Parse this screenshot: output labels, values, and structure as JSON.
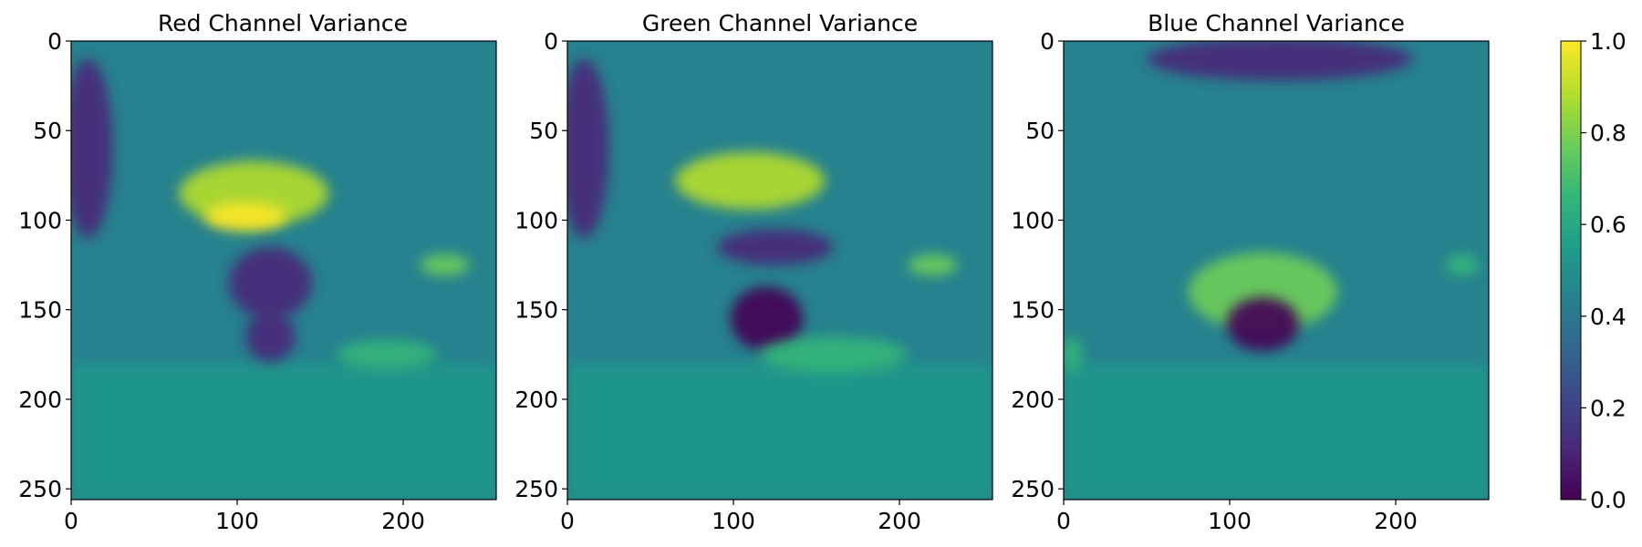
{
  "chart_data": [
    {
      "type": "heatmap",
      "title": "Red Channel Variance",
      "image_size": [
        256,
        256
      ],
      "xlim": [
        0,
        256
      ],
      "ylim": [
        256,
        0
      ],
      "xticks": [
        0,
        100,
        200
      ],
      "yticks": [
        0,
        50,
        100,
        150,
        200,
        250
      ],
      "colormap": "viridis",
      "features": [
        {
          "desc": "bright band",
          "cx": 110,
          "cy": 85,
          "rx": 45,
          "ry": 18,
          "value": 0.85
        },
        {
          "desc": "hot spot",
          "cx": 105,
          "cy": 98,
          "rx": 25,
          "ry": 8,
          "value": 1.0
        },
        {
          "desc": "dark region",
          "cx": 120,
          "cy": 135,
          "rx": 25,
          "ry": 20,
          "value": 0.1
        },
        {
          "desc": "dark region",
          "cx": 120,
          "cy": 165,
          "rx": 15,
          "ry": 14,
          "value": 0.1
        },
        {
          "desc": "bright patch",
          "cx": 225,
          "cy": 125,
          "rx": 15,
          "ry": 6,
          "value": 0.8
        },
        {
          "desc": "bright patch",
          "cx": 190,
          "cy": 175,
          "rx": 30,
          "ry": 8,
          "value": 0.7
        },
        {
          "desc": "dark corner",
          "cx": 10,
          "cy": 60,
          "rx": 15,
          "ry": 50,
          "value": 0.15
        }
      ]
    },
    {
      "type": "heatmap",
      "title": "Green Channel Variance",
      "image_size": [
        256,
        256
      ],
      "xlim": [
        0,
        256
      ],
      "ylim": [
        256,
        0
      ],
      "xticks": [
        0,
        100,
        200
      ],
      "yticks": [
        0,
        50,
        100,
        150,
        200,
        250
      ],
      "colormap": "viridis",
      "features": [
        {
          "desc": "bright band",
          "cx": 110,
          "cy": 78,
          "rx": 45,
          "ry": 16,
          "value": 0.85
        },
        {
          "desc": "dark band",
          "cx": 125,
          "cy": 115,
          "rx": 35,
          "ry": 10,
          "value": 0.15
        },
        {
          "desc": "dark blob",
          "cx": 120,
          "cy": 155,
          "rx": 22,
          "ry": 18,
          "value": 0.05
        },
        {
          "desc": "bright patch",
          "cx": 220,
          "cy": 125,
          "rx": 15,
          "ry": 6,
          "value": 0.8
        },
        {
          "desc": "bright patch",
          "cx": 160,
          "cy": 175,
          "rx": 45,
          "ry": 10,
          "value": 0.7
        },
        {
          "desc": "dark corner",
          "cx": 10,
          "cy": 60,
          "rx": 15,
          "ry": 50,
          "value": 0.15
        }
      ]
    },
    {
      "type": "heatmap",
      "title": "Blue Channel Variance",
      "image_size": [
        256,
        256
      ],
      "xlim": [
        0,
        256
      ],
      "ylim": [
        256,
        0
      ],
      "xticks": [
        0,
        100,
        200
      ],
      "yticks": [
        0,
        50,
        100,
        150,
        200,
        250
      ],
      "colormap": "viridis",
      "features": [
        {
          "desc": "bright arc",
          "cx": 120,
          "cy": 140,
          "rx": 45,
          "ry": 22,
          "value": 0.75
        },
        {
          "desc": "dark blob",
          "cx": 120,
          "cy": 158,
          "rx": 22,
          "ry": 15,
          "value": 0.05
        },
        {
          "desc": "dark top band",
          "cx": 130,
          "cy": 10,
          "rx": 80,
          "ry": 12,
          "value": 0.15
        },
        {
          "desc": "bright patch",
          "cx": 240,
          "cy": 125,
          "rx": 10,
          "ry": 6,
          "value": 0.7
        },
        {
          "desc": "bright patch",
          "cx": 5,
          "cy": 175,
          "rx": 6,
          "ry": 10,
          "value": 0.7
        }
      ]
    }
  ],
  "colorbar": {
    "colormap": "viridis",
    "range": [
      0.0,
      1.0
    ],
    "ticks": [
      "0.0",
      "0.2",
      "0.4",
      "0.6",
      "0.8",
      "1.0"
    ],
    "colors": [
      "#440154",
      "#482878",
      "#3e4989",
      "#31688e",
      "#26828e",
      "#1f9e89",
      "#35b779",
      "#6ece58",
      "#b5de2b",
      "#fde725"
    ]
  }
}
